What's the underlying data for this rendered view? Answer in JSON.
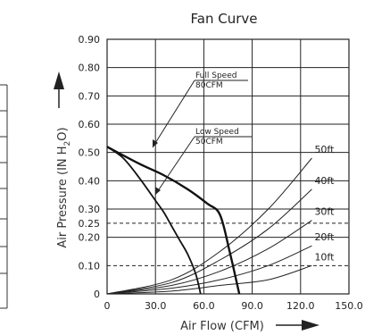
{
  "chart_data": {
    "type": "line",
    "title": "Fan Curve",
    "xlabel": "Air Flow (CFM)",
    "ylabel_pre": "Air Pressure (IN H",
    "ylabel_sub": "2",
    "ylabel_post": "O)",
    "xlim": [
      0,
      150
    ],
    "ylim": [
      0,
      0.9
    ],
    "x_ticks": [
      "0",
      "30.0",
      "60.0",
      "90.0",
      "120.0",
      "150.0"
    ],
    "x_tick_values": [
      0,
      30,
      60,
      90,
      120,
      150
    ],
    "y_ticks": [
      "0",
      "0.10",
      "0.20",
      "0.25",
      "0.30",
      "0.40",
      "0.50",
      "0.60",
      "0.70",
      "0.80",
      "0.90"
    ],
    "y_tick_values": [
      0,
      0.1,
      0.2,
      0.25,
      0.3,
      0.4,
      0.5,
      0.6,
      0.7,
      0.8,
      0.9
    ],
    "grid": true,
    "fan_curves": [
      {
        "name": "Full Speed",
        "sub": "80CFM",
        "x": [
          0,
          20,
          35,
          50,
          62,
          70,
          76,
          82
        ],
        "y": [
          0.52,
          0.46,
          0.42,
          0.37,
          0.32,
          0.28,
          0.15,
          0
        ]
      },
      {
        "name": "Low Speed",
        "sub": "50CFM",
        "x": [
          0,
          10,
          20,
          30,
          35,
          40,
          45,
          50,
          55,
          58
        ],
        "y": [
          0.52,
          0.48,
          0.41,
          0.33,
          0.29,
          0.24,
          0.19,
          0.14,
          0.07,
          0
        ]
      }
    ],
    "system_curves": [
      {
        "name": "50ft",
        "x": [
          0,
          40,
          70,
          100,
          127
        ],
        "y": [
          0,
          0.05,
          0.15,
          0.3,
          0.48
        ]
      },
      {
        "name": "40ft",
        "x": [
          0,
          40,
          70,
          100,
          127
        ],
        "y": [
          0,
          0.04,
          0.12,
          0.23,
          0.37
        ]
      },
      {
        "name": "30ft",
        "x": [
          0,
          40,
          70,
          100,
          127
        ],
        "y": [
          0,
          0.03,
          0.08,
          0.16,
          0.26
        ]
      },
      {
        "name": "20ft",
        "x": [
          0,
          40,
          70,
          100,
          127
        ],
        "y": [
          0,
          0.02,
          0.05,
          0.1,
          0.17
        ]
      },
      {
        "name": "10ft",
        "x": [
          0,
          40,
          70,
          100,
          127
        ],
        "y": [
          0,
          0.01,
          0.03,
          0.05,
          0.1
        ]
      }
    ],
    "reference_lines": [
      0.25,
      0.1
    ]
  }
}
